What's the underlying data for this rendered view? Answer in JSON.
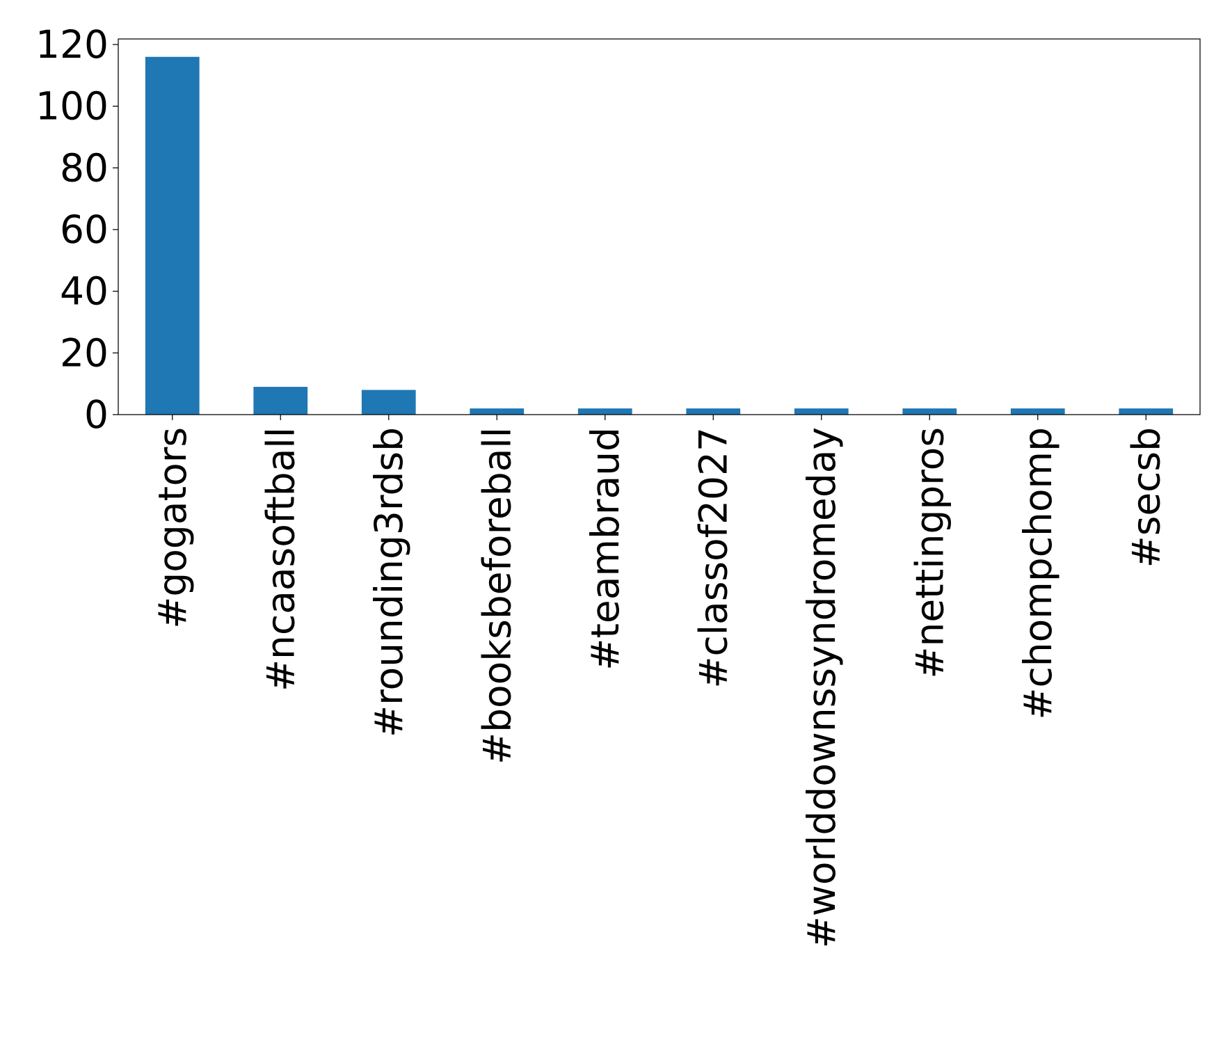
{
  "chart_data": {
    "type": "bar",
    "title": "",
    "xlabel": "",
    "ylabel": "",
    "categories": [
      "#gogators",
      "#ncaasoftball",
      "#rounding3rdsb",
      "#booksbeforeball",
      "#teambraud",
      "#classof2027",
      "#worlddownssyndromeday",
      "#nettingpros",
      "#chompchomp",
      "#secsb"
    ],
    "values": [
      116,
      9,
      8,
      2,
      2,
      2,
      2,
      2,
      2,
      2
    ],
    "ylim": [
      0,
      121.8
    ],
    "yticks": [
      0,
      20,
      40,
      60,
      80,
      100,
      120
    ],
    "ytick_labels": [
      "0",
      "20",
      "40",
      "60",
      "80",
      "100",
      "120"
    ],
    "bar_color": "#1f77b4",
    "grid": false,
    "legend": "none"
  }
}
